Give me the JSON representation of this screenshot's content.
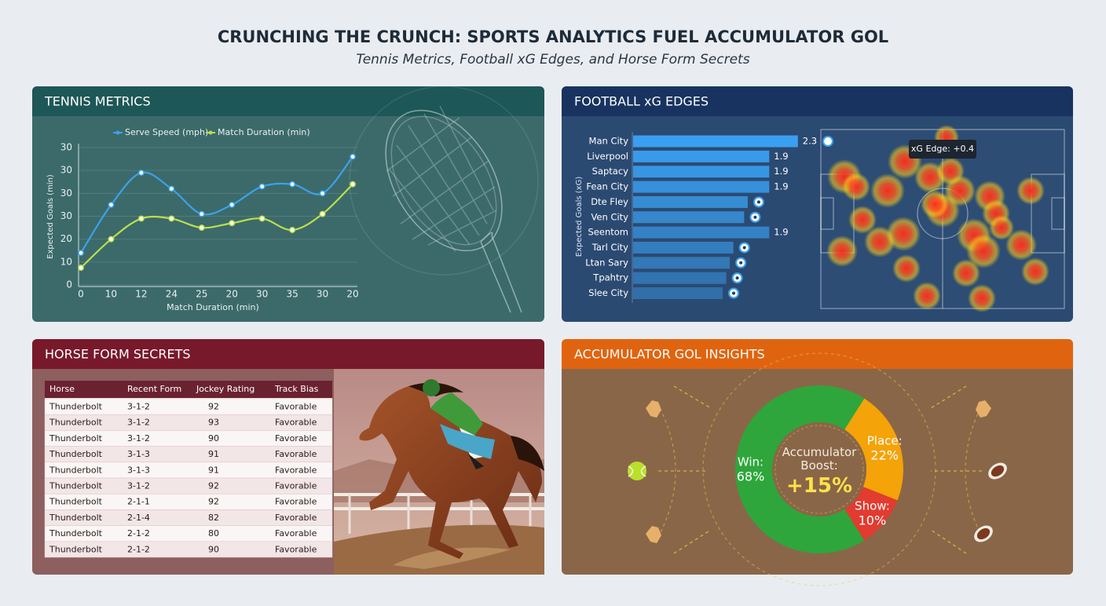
{
  "header": {
    "title": "CRUNCHING THE CRUNCH: SPORTS ANALYTICS FUEL ACCUMULATOR GOL",
    "subtitle": "Tennis Metrics, Football xG Edges, and Horse Form Secrets"
  },
  "chart_data": [
    {
      "type": "line",
      "title": "TENNIS METRICS",
      "x_label": "Match Duration (min)",
      "y_label": "Expected Goals (min)",
      "categories": [
        "0",
        "10",
        "12",
        "24",
        "25",
        "20",
        "30",
        "35",
        "30",
        "20"
      ],
      "series": [
        {
          "name": "Serve Speed (mph)",
          "color": "#3aa2ea",
          "values": [
            14,
            35,
            49,
            42,
            31,
            35,
            43,
            44,
            40,
            56
          ]
        },
        {
          "name": "Match Duration (min)",
          "color": "#b9e04a",
          "values": [
            7.5,
            20,
            29,
            29,
            25,
            27,
            29,
            24,
            31,
            44
          ]
        }
      ],
      "ylim": [
        0,
        60
      ],
      "yticks": [
        0,
        10,
        20,
        30,
        {
          "value": 40,
          "label": "30"
        },
        {
          "value": 50,
          "label": "30"
        },
        {
          "value": 60,
          "label": "30"
        }
      ],
      "grid": true
    },
    {
      "type": "bar",
      "orientation": "horizontal",
      "title": "FOOTBALL xG EDGES",
      "y_label": "Expected Goals (xG)",
      "categories": [
        "Man City",
        "Liverpool",
        "Saptacy",
        "Fean City",
        "Dte Fley",
        "Ven City",
        "Seentom",
        "Tarl City",
        "Ltan Sary",
        "Tpahtry",
        "Slee City"
      ],
      "values": [
        2.3,
        1.9,
        1.9,
        1.9,
        1.6,
        1.55,
        1.9,
        1.4,
        1.35,
        1.3,
        1.25
      ],
      "value_labels": [
        "2.3",
        "1.9",
        "1.9",
        "1.9",
        null,
        null,
        "1.9",
        null,
        null,
        null,
        null
      ],
      "color": "#3a9ff0",
      "xlim": [
        0,
        2.5
      ]
    },
    {
      "type": "pie",
      "title": "ACCUMULATOR GOL INSIGHTS",
      "categories": [
        "Win:",
        "Place:",
        "Show:"
      ],
      "values": [
        68,
        22,
        10
      ],
      "value_labels": [
        "68%",
        "22%",
        "10%"
      ],
      "colors": [
        "#2ea63c",
        "#f4a308",
        "#e23b30"
      ],
      "center_label": "Accumulator Boost:",
      "center_value": "+15%"
    }
  ],
  "heatmap": {
    "annotation": "xG Edge: +0.4"
  },
  "table": {
    "title": "HORSE FORM SECRETS",
    "columns": [
      "Horse",
      "Recent Form",
      "Jockey Rating",
      "Track Bias"
    ],
    "rows": [
      [
        "Thunderbolt",
        "3-1-2",
        92,
        "Favorable"
      ],
      [
        "Thunderbolt",
        "3-1-2",
        93,
        "Favorable"
      ],
      [
        "Thunderbolt",
        "3-1-2",
        90,
        "Favorable"
      ],
      [
        "Thunderbolt",
        "3-1-3",
        91,
        "Favorable"
      ],
      [
        "Thunderbolt",
        "3-1-3",
        91,
        "Favorable"
      ],
      [
        "Thunderbolt",
        "3-1-2",
        92,
        "Favorable"
      ],
      [
        "Thunderbolt",
        "2-1-1",
        92,
        "Favorable"
      ],
      [
        "Thunderbolt",
        "2-1-4",
        82,
        "Favorable"
      ],
      [
        "Thunderbolt",
        "2-1-2",
        80,
        "Favorable"
      ],
      [
        "Thunderbolt",
        "2-1-2",
        90,
        "Favorable"
      ]
    ]
  }
}
